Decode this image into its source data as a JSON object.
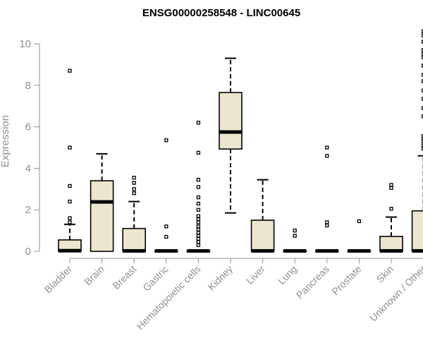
{
  "chart_data": {
    "type": "box",
    "title": "ENSG00000258548 - LINC00645",
    "ylabel": "Expression",
    "xlabel": "",
    "ylim": [
      0,
      10.6
    ],
    "yticks": [
      0,
      2,
      4,
      6,
      8,
      10
    ],
    "grid": false,
    "legend": "none",
    "colors": {
      "box_fill": "#ede6cf",
      "stroke": "#000000",
      "axis": "#909090",
      "tick_text": "#909090"
    },
    "categories": [
      "Bladder",
      "Brain",
      "Breast",
      "Gastric",
      "Hematopoietic cells",
      "Kidney",
      "Liver",
      "Lung",
      "Pancreas",
      "Prostate",
      "Skin",
      "Unknown / Other"
    ],
    "boxes": [
      {
        "name": "Bladder",
        "min": 0,
        "q1": 0,
        "median": 0.03,
        "q3": 0.55,
        "max": 1.3,
        "outliers": [
          1.4,
          1.6,
          2.4,
          3.15,
          5.0,
          8.7
        ]
      },
      {
        "name": "Brain",
        "min": 0,
        "q1": 0,
        "median": 2.38,
        "q3": 3.4,
        "max": 4.7,
        "outliers": []
      },
      {
        "name": "Breast",
        "min": 0,
        "q1": 0,
        "median": 0.02,
        "q3": 1.1,
        "max": 2.4,
        "outliers": [
          2.8,
          3.0,
          3.3,
          3.55
        ]
      },
      {
        "name": "Gastric",
        "min": 0,
        "q1": 0,
        "median": 0.02,
        "q3": 0.02,
        "max": 0.02,
        "outliers": [
          0.7,
          1.2,
          5.35
        ]
      },
      {
        "name": "Hematopoietic cells",
        "min": 0,
        "q1": 0,
        "median": 0.02,
        "q3": 0.02,
        "max": 0.02,
        "outliers": [
          0.3,
          0.45,
          0.6,
          0.75,
          0.9,
          1.05,
          1.2,
          1.4,
          1.55,
          1.7,
          2.0,
          2.3,
          2.6,
          3.1,
          3.45,
          4.75,
          6.2
        ]
      },
      {
        "name": "Kidney",
        "min": 1.85,
        "q1": 4.93,
        "median": 5.75,
        "q3": 7.65,
        "max": 9.3,
        "outliers": []
      },
      {
        "name": "Liver",
        "min": 0,
        "q1": 0,
        "median": 0.02,
        "q3": 1.5,
        "max": 3.45,
        "outliers": []
      },
      {
        "name": "Lung",
        "min": 0,
        "q1": 0,
        "median": 0.02,
        "q3": 0.02,
        "max": 0.02,
        "outliers": [
          0.75,
          1.0
        ]
      },
      {
        "name": "Pancreas",
        "min": 0,
        "q1": 0,
        "median": 0.02,
        "q3": 0.02,
        "max": 0.02,
        "outliers": [
          1.25,
          1.4,
          4.6,
          5.0
        ]
      },
      {
        "name": "Prostate",
        "min": 0,
        "q1": 0,
        "median": 0.02,
        "q3": 0.02,
        "max": 0.02,
        "outliers": [
          1.45
        ]
      },
      {
        "name": "Skin",
        "min": 0,
        "q1": 0,
        "median": 0.02,
        "q3": 0.72,
        "max": 1.65,
        "outliers": [
          2.05,
          3.05,
          3.2
        ]
      },
      {
        "name": "Unknown / Other",
        "min": 0,
        "q1": 0,
        "median": 0.02,
        "q3": 1.95,
        "max": 4.6,
        "outliers": [
          4.95,
          5.1,
          5.3,
          5.45,
          5.55,
          6.5,
          6.9,
          7.35,
          7.75,
          8.2,
          8.5,
          8.95,
          9.35,
          9.5,
          9.7,
          10.1,
          10.4,
          10.6
        ]
      }
    ]
  }
}
